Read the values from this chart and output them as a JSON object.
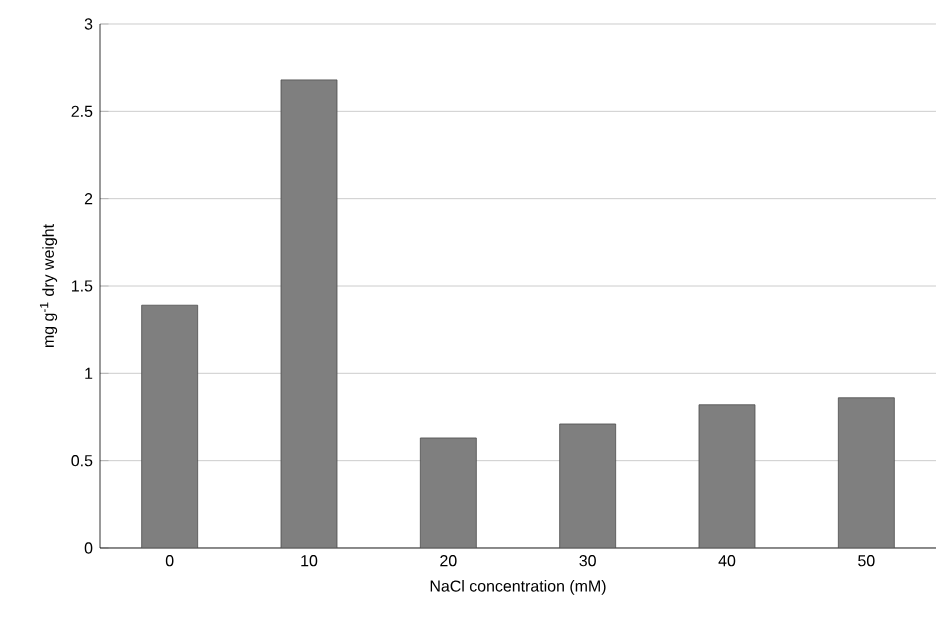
{
  "chart_data": {
    "type": "bar",
    "xlabel": "NaCl concentration (mM)",
    "ylabel": "mg g$^{-1}$ dry weight",
    "categories": [
      "0",
      "10",
      "20",
      "30",
      "40",
      "50"
    ],
    "values": [
      1.39,
      2.68,
      0.63,
      0.71,
      0.82,
      0.86
    ],
    "color": "#7f7f7f",
    "ylim": [
      0,
      3
    ],
    "yticks": [
      0,
      0.5,
      1,
      1.5,
      2,
      2.5,
      3
    ],
    "grid": "y"
  }
}
